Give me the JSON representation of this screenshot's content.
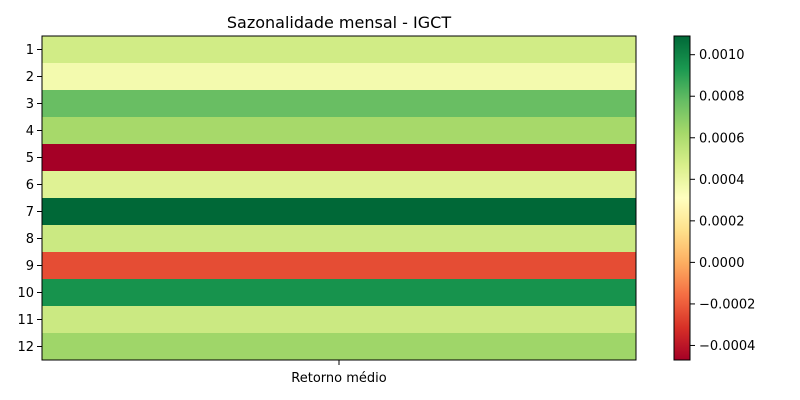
{
  "chart_data": {
    "type": "heatmap",
    "title": "Sazonalidade mensal - IGCT",
    "rows": [
      "1",
      "2",
      "3",
      "4",
      "5",
      "6",
      "7",
      "8",
      "9",
      "10",
      "11",
      "12"
    ],
    "columns": [
      "Retorno médio"
    ],
    "values": [
      0.00049,
      0.00036,
      0.00077,
      0.00062,
      -0.00047,
      0.00044,
      0.00109,
      0.00051,
      -0.00024,
      0.00095,
      0.00051,
      0.00064
    ],
    "colormap": "RdYlGn",
    "color_range": [
      -0.00047,
      0.00109
    ],
    "colorbar_ticks": [
      "0.0010",
      "0.0008",
      "0.0006",
      "0.0004",
      "0.0002",
      "0.0000",
      "−0.0002",
      "−0.0004"
    ],
    "colorbar_tick_values": [
      0.001,
      0.0008,
      0.0006,
      0.0004,
      0.0002,
      0.0,
      -0.0002,
      -0.0004
    ],
    "grid": false,
    "legend": "colorbar-right"
  }
}
